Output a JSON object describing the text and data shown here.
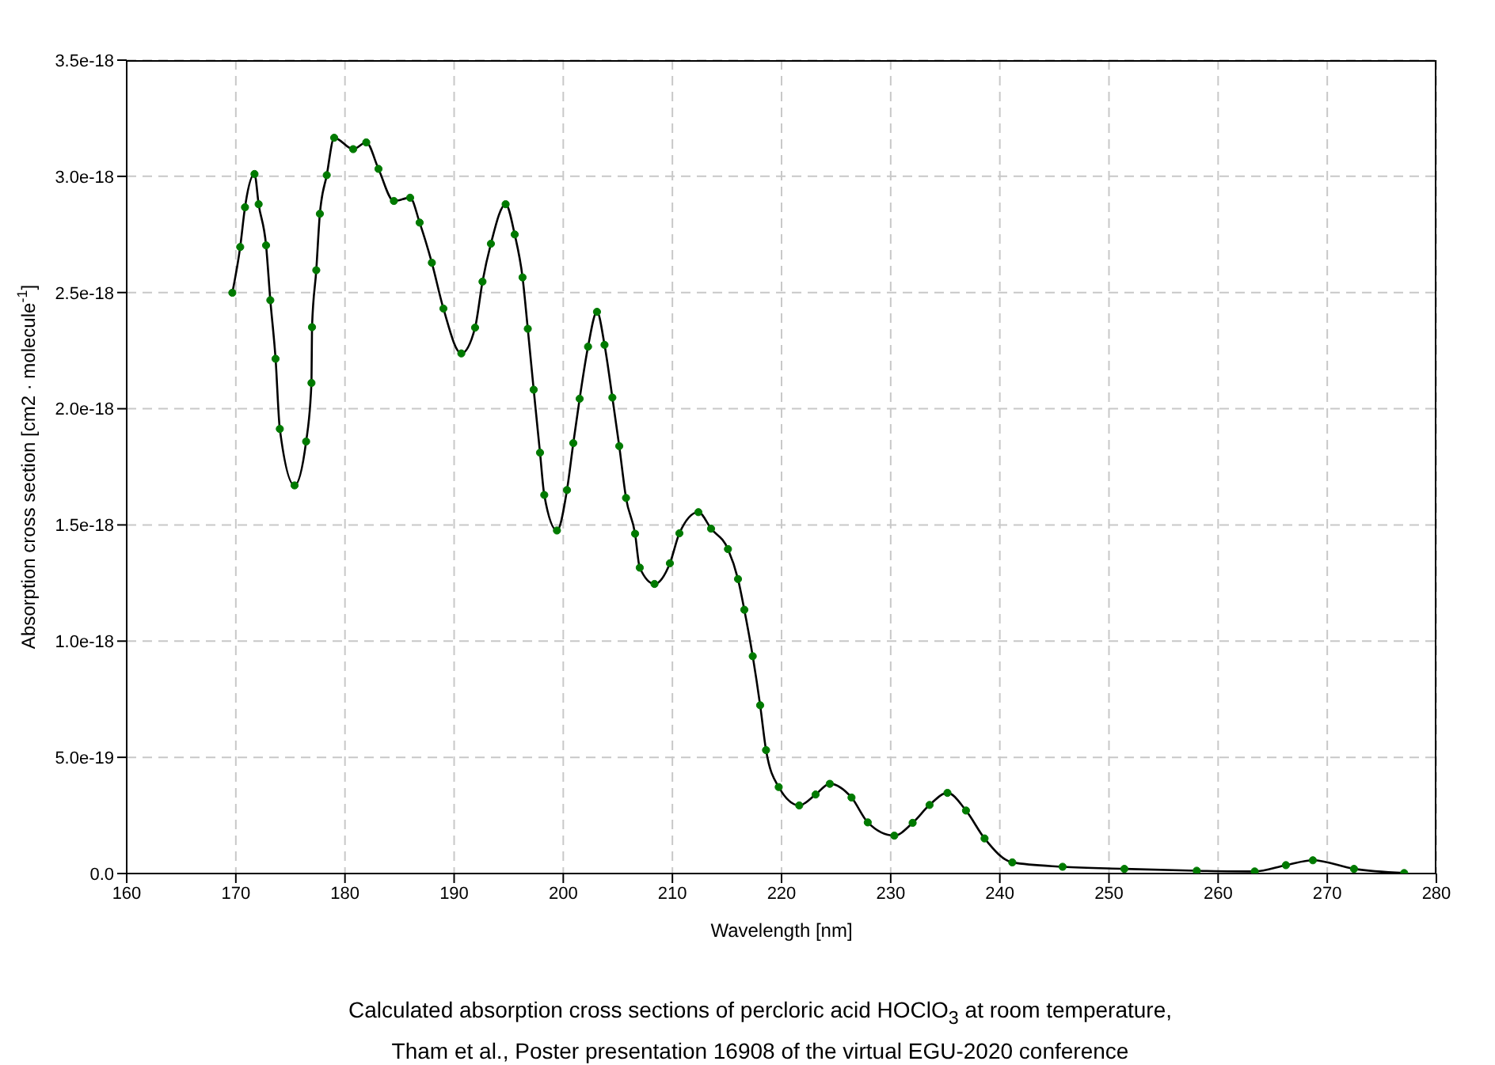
{
  "chart_data": {
    "type": "line",
    "title": "Calculated absorption cross sections of percloric acid HOClO$_{3}$ at room temperature,",
    "subtitle": "Tham et al., Poster presentation 16908 of the virtual EGU-2020 conference",
    "xlabel": "Wavelength [nm]",
    "ylabel": "Absorption cross section [cm2 · molecule$^{-1}$]",
    "xlim": [
      160,
      280
    ],
    "xticks": [
      160,
      170,
      180,
      190,
      200,
      210,
      220,
      230,
      240,
      250,
      260,
      270,
      280
    ],
    "ylim": [
      0,
      3.5e-18
    ],
    "yticks": [
      {
        "value": 0,
        "label": "0.0"
      },
      {
        "value": 5e-19,
        "label": "5.0e-19"
      },
      {
        "value": 1e-18,
        "label": "1.0e-18"
      },
      {
        "value": 1.5e-18,
        "label": "1.5e-18"
      },
      {
        "value": 2e-18,
        "label": "2.0e-18"
      },
      {
        "value": 2.5e-18,
        "label": "2.5e-18"
      },
      {
        "value": 3e-18,
        "label": "3.0e-18"
      },
      {
        "value": 3.5e-18,
        "label": "3.5e-18"
      }
    ],
    "grid": true,
    "marker": "circle",
    "line_style": "solid",
    "series": [
      {
        "color": "#000000",
        "x": [
          169.68,
          170.4,
          170.84,
          171.71,
          172.09,
          172.77,
          173.16,
          173.64,
          174.03,
          175.38,
          176.44,
          176.93,
          176.98,
          177.37,
          177.7,
          178.33,
          179.01,
          180.75,
          181.95,
          183.07,
          184.48,
          185.97,
          186.84,
          187.96,
          189.02,
          190.66,
          191.92,
          192.6,
          193.37,
          194.72,
          195.55,
          196.27,
          196.75,
          197.29,
          197.87,
          198.26,
          199.42,
          200.34,
          200.92,
          201.5,
          202.27,
          203.09,
          203.78,
          204.5,
          205.13,
          205.75,
          206.58,
          207.01,
          208.36,
          209.77,
          210.64,
          212.38,
          213.54,
          215.09,
          216.01,
          216.59,
          217.36,
          218.04,
          218.58,
          219.74,
          221.62,
          223.12,
          224.42,
          226.41,
          227.9,
          230.33,
          232.01,
          233.56,
          235.2,
          236.9,
          238.6,
          241.14,
          245.75,
          251.41,
          258.04,
          263.35,
          266.21,
          268.68,
          272.45,
          277.05
        ],
        "values": [
          2.499e-18,
          2.696e-18,
          2.867e-18,
          3.01e-18,
          2.88e-18,
          2.703e-18,
          2.467e-18,
          2.215e-18,
          1.913e-18,
          1.67e-18,
          1.859e-18,
          2.111e-18,
          2.351e-18,
          2.596e-18,
          2.839e-18,
          3.005e-18,
          3.166e-18,
          3.117e-18,
          3.146e-18,
          3.032e-18,
          2.894e-18,
          2.908e-18,
          2.801e-18,
          2.628e-18,
          2.431e-18,
          2.238e-18,
          2.349e-18,
          2.547e-18,
          2.71e-18,
          2.88e-18,
          2.75e-18,
          2.565e-18,
          2.344e-18,
          2.082e-18,
          1.811e-18,
          1.629e-18,
          1.476e-18,
          1.65e-18,
          1.852e-18,
          2.043e-18,
          2.267e-18,
          2.417e-18,
          2.275e-18,
          2.048e-18,
          1.839e-18,
          1.616e-18,
          1.462e-18,
          1.316e-18,
          1.246e-18,
          1.335e-18,
          1.464e-18,
          1.555e-18,
          1.484e-18,
          1.396e-18,
          1.267e-18,
          1.135e-18,
          9.35e-19,
          7.24e-19,
          5.31e-19,
          3.72e-19,
          2.93e-19,
          3.4e-19,
          3.86e-19,
          3.27e-19,
          2.2e-19,
          1.63e-19,
          2.18e-19,
          2.95e-19,
          3.47e-19,
          2.71e-19,
          1.51e-19,
          4.8e-20,
          2.9e-20,
          2e-20,
          1.2e-20,
          9e-21,
          3.6e-20,
          5.7e-20,
          2e-20,
          2e-21
        ]
      }
    ]
  }
}
